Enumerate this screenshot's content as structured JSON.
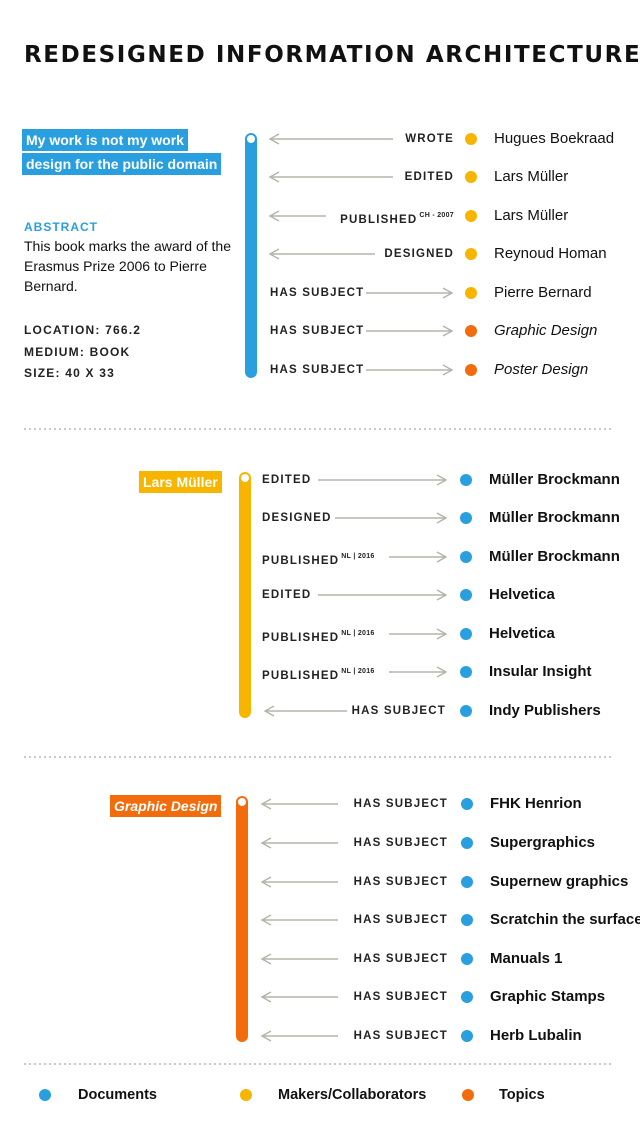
{
  "title": "REDESIGNED INFORMATION ARCHITECTURE",
  "colors": {
    "blue": "#2a9fe0",
    "yellow": "#f8b500",
    "orange": "#f26c0d",
    "arrow": "#b5b3a8",
    "dots": "#c9c9c9"
  },
  "section1": {
    "node_line1": "My work is not my work",
    "node_line2": "design for the public domain",
    "abstract_label": "ABSTRACT",
    "abstract_text": "This book marks the award of the Erasmus Prize 2006 to Pierre Bernard.",
    "location": "LOCATION: 766.2",
    "medium": "MEDIUM: BOOK",
    "size": "SIZE: 40 X 33",
    "relations": [
      {
        "label": "WROTE",
        "sup": "",
        "target": "Hugues Boekraad",
        "dot": "yellow"
      },
      {
        "label": "EDITED",
        "sup": "",
        "target": "Lars Müller",
        "dot": "yellow"
      },
      {
        "label": "PUBLISHED",
        "sup": "CH - 2007",
        "target": "Lars Müller",
        "dot": "yellow"
      },
      {
        "label": "DESIGNED",
        "sup": "",
        "target": "Reynoud Homan",
        "dot": "yellow"
      },
      {
        "label": "HAS SUBJECT",
        "sup": "",
        "target": "Pierre Bernard",
        "dot": "yellow"
      },
      {
        "label": "HAS SUBJECT",
        "sup": "",
        "target": "Graphic Design",
        "dot": "orange"
      },
      {
        "label": "HAS SUBJECT",
        "sup": "",
        "target": "Poster Design",
        "dot": "orange"
      }
    ]
  },
  "section2": {
    "node": "Lars Müller",
    "relations": [
      {
        "label": "EDITED",
        "sup": "",
        "target": "Müller Brockmann"
      },
      {
        "label": "DESIGNED",
        "sup": "",
        "target": "Müller Brockmann"
      },
      {
        "label": "PUBLISHED",
        "sup": "NL | 2016",
        "target": "Müller Brockmann"
      },
      {
        "label": "EDITED",
        "sup": "",
        "target": "Helvetica"
      },
      {
        "label": "PUBLISHED",
        "sup": "NL | 2016",
        "target": "Helvetica"
      },
      {
        "label": "PUBLISHED",
        "sup": "NL | 2016",
        "target": "Insular Insight"
      },
      {
        "label": "HAS SUBJECT",
        "sup": "",
        "target": "Indy Publishers"
      }
    ]
  },
  "section3": {
    "node": "Graphic Design",
    "relations": [
      {
        "label": "HAS SUBJECT",
        "target": "FHK Henrion"
      },
      {
        "label": "HAS SUBJECT",
        "target": "Supergraphics"
      },
      {
        "label": "HAS SUBJECT",
        "target": "Supernew graphics"
      },
      {
        "label": "HAS SUBJECT",
        "target": "Scratchin the surface"
      },
      {
        "label": "HAS SUBJECT",
        "target": "Manuals 1"
      },
      {
        "label": "HAS SUBJECT",
        "target": "Graphic Stamps"
      },
      {
        "label": "HAS SUBJECT",
        "target": "Herb Lubalin"
      }
    ]
  },
  "legend": {
    "documents": "Documents",
    "makers": "Makers/Collaborators",
    "topics": "Topics"
  }
}
